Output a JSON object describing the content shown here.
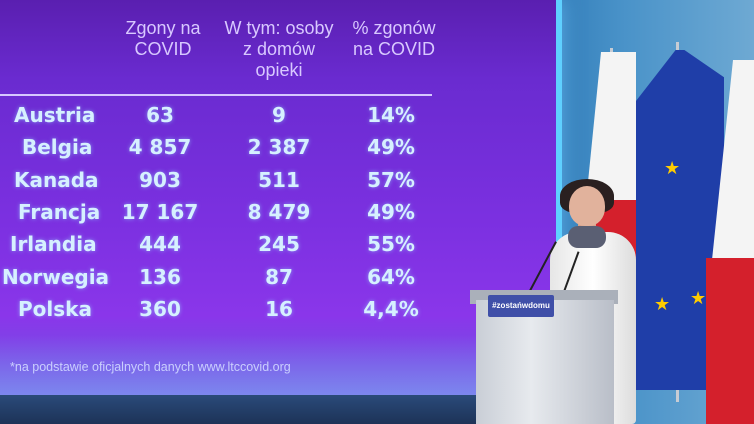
{
  "screen": {
    "headers": [
      "Zgony na\nCOVID",
      "W tym: osoby\nz domów\nopieki",
      "% zgonów\nna COVID"
    ],
    "rows": [
      {
        "country": "Austria",
        "deaths": "63",
        "care_homes": "9",
        "percent": "14%"
      },
      {
        "country": "Belgia",
        "deaths": "4 857",
        "care_homes": "2 387",
        "percent": "49%"
      },
      {
        "country": "Kanada",
        "deaths": "903",
        "care_homes": "511",
        "percent": "57%"
      },
      {
        "country": "Francja",
        "deaths": "17 167",
        "care_homes": "8 479",
        "percent": "49%"
      },
      {
        "country": "Irlandia",
        "deaths": "444",
        "care_homes": "245",
        "percent": "55%"
      },
      {
        "country": "Norwegia",
        "deaths": "136",
        "care_homes": "87",
        "percent": "64%"
      },
      {
        "country": "Polska",
        "deaths": "360",
        "care_homes": "16",
        "percent": "4,4%"
      }
    ],
    "footnote": "*na podstawie oficjalnych danych www.ltccovid.org"
  },
  "podium": {
    "sign": "#zostańwdomu"
  },
  "colors": {
    "screen_purple": "#7b30e0",
    "poland_red": "#d4202c",
    "eu_blue": "#1f3ea8",
    "eu_star": "#ffcc00"
  }
}
